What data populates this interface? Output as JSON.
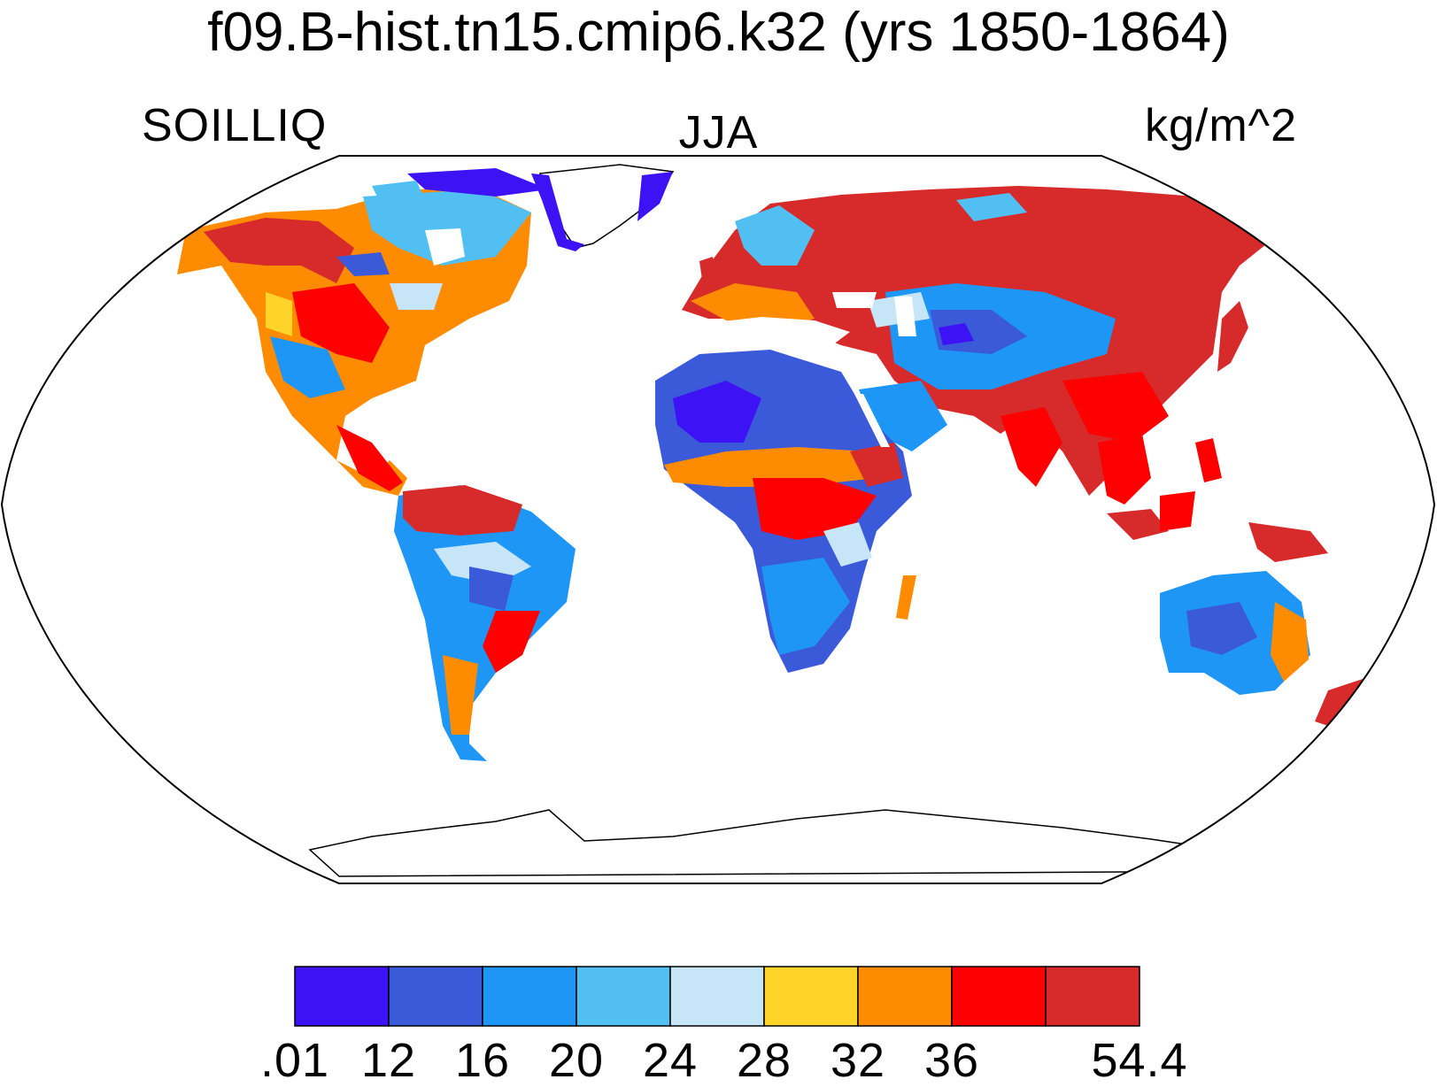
{
  "title": "f09.B-hist.tn15.cmip6.k32 (yrs 1850-1864)",
  "left_label": "SOILLIQ",
  "center_label": "JJA",
  "right_label": "kg/m^2",
  "legend": {
    "colors": [
      "#3d12f5",
      "#3b5ad9",
      "#1e96f5",
      "#52bff2",
      "#c6e6f7",
      "#ffd42a",
      "#ff8c00",
      "#ff0000",
      "#d72a2a"
    ],
    "tick_labels": [
      ".01",
      "12",
      "16",
      "20",
      "24",
      "28",
      "32",
      "36",
      "54.4"
    ],
    "tick_boundaries": [
      0,
      1,
      2,
      3,
      4,
      5,
      6,
      7,
      9
    ]
  }
}
